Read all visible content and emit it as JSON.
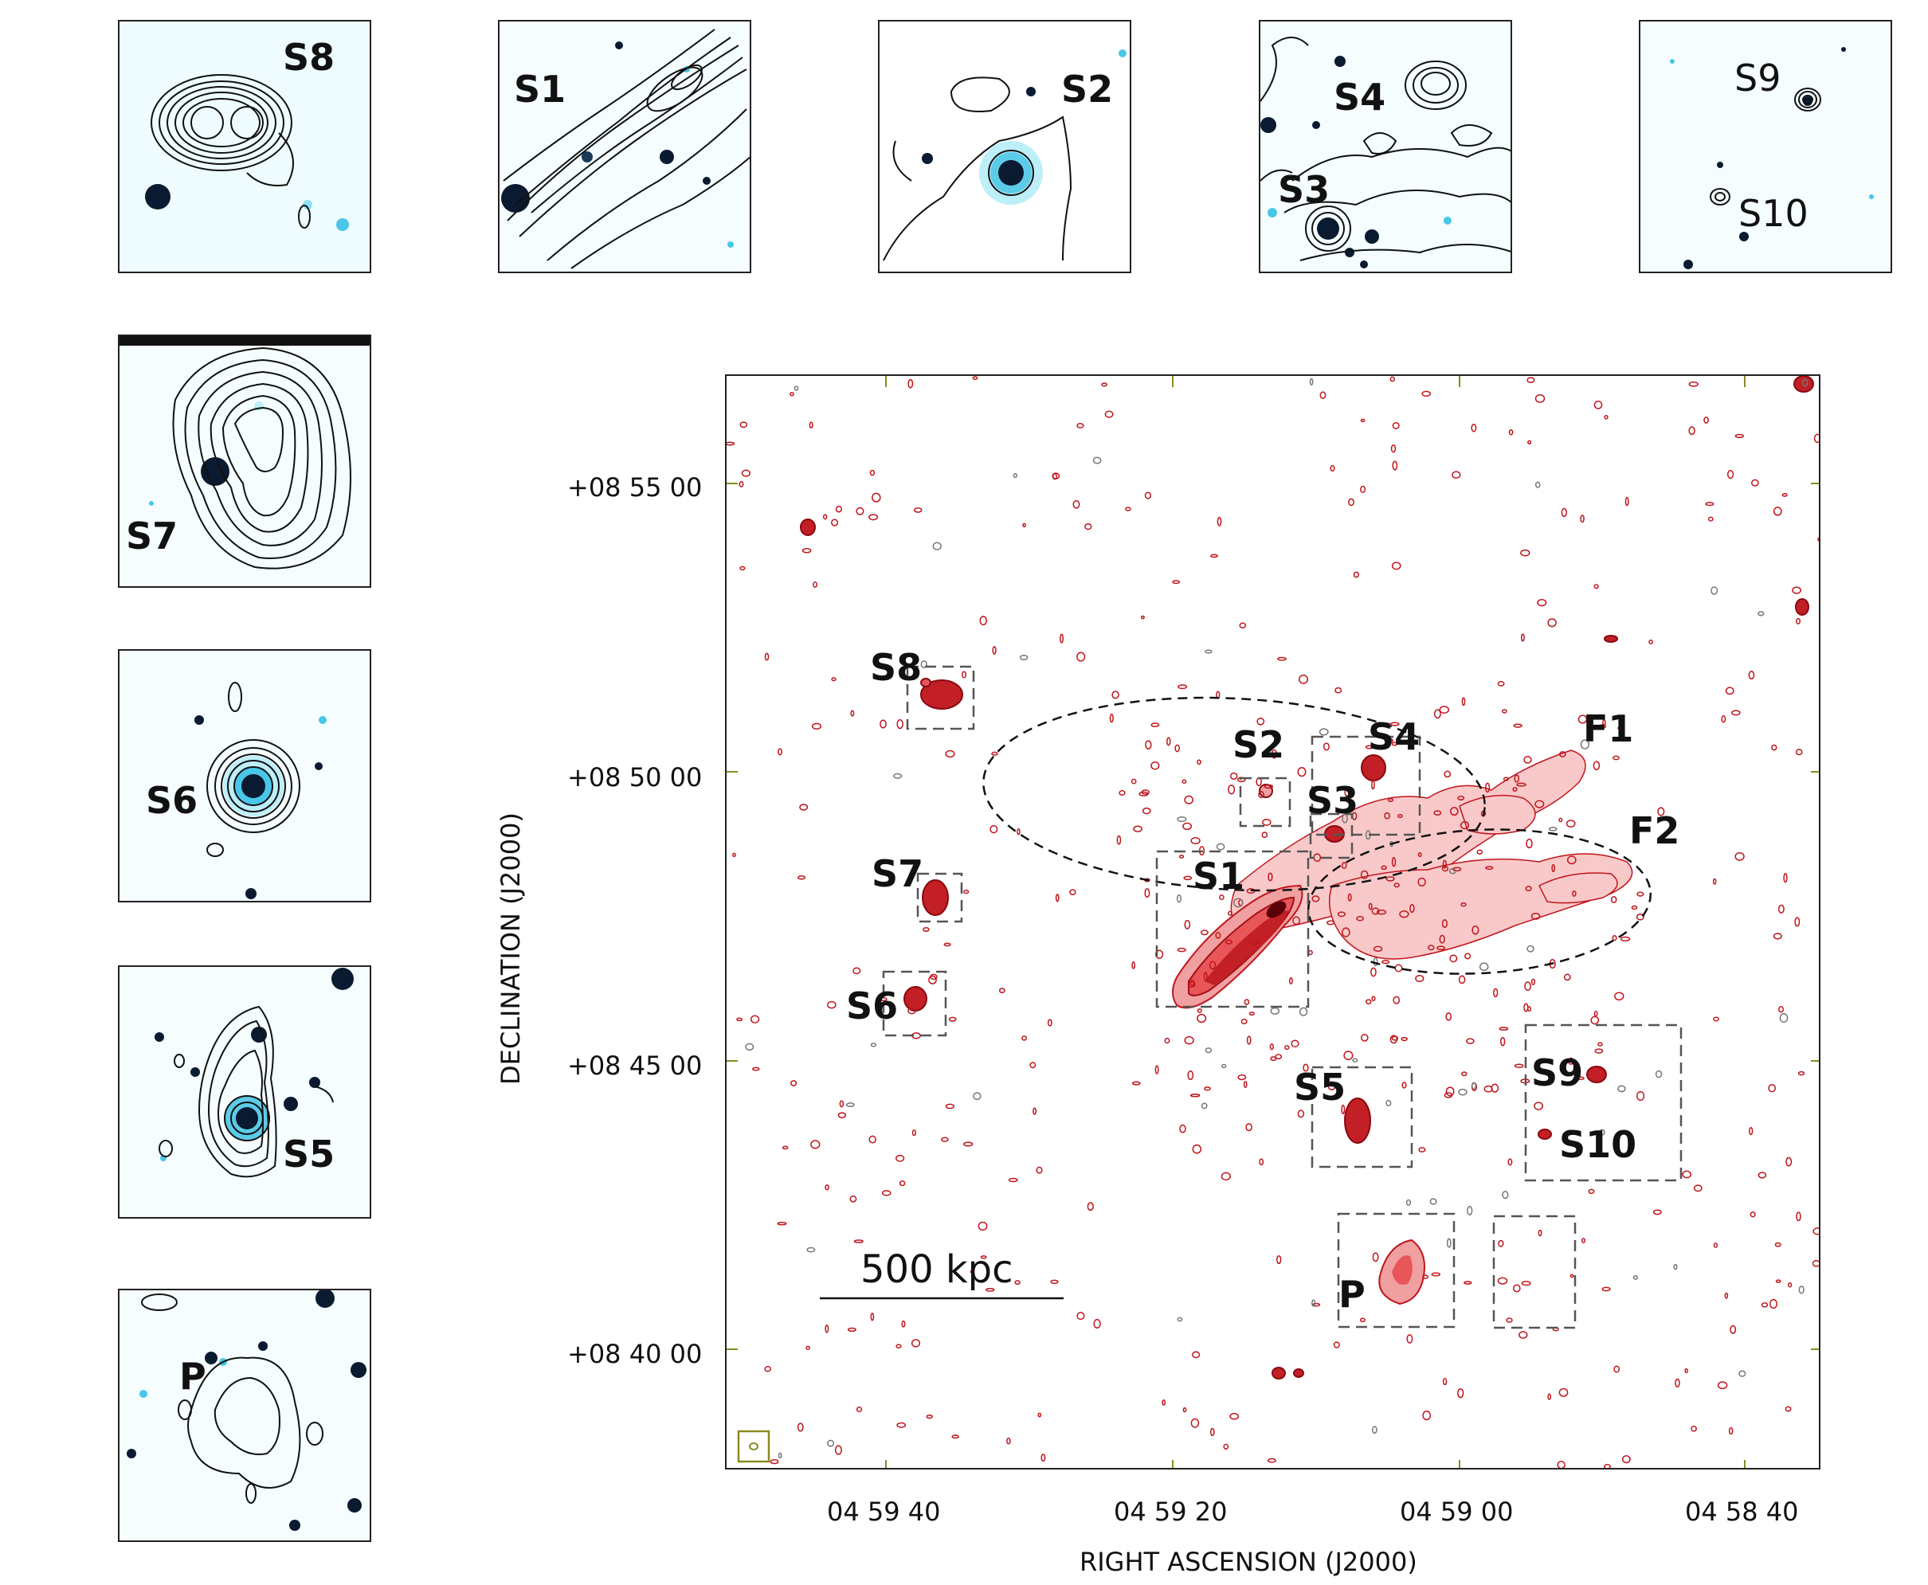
{
  "figure": {
    "insets": {
      "S8": "S8",
      "S1": "S1",
      "S2": "S2",
      "S4": "S4",
      "S3": "S3",
      "S9": "S9",
      "S10": "S10",
      "S7": "S7",
      "S6": "S6",
      "S5": "S5",
      "P": "P"
    },
    "main": {
      "labels": {
        "S1": "S1",
        "S2": "S2",
        "S3": "S3",
        "S4": "S4",
        "S5": "S5",
        "S6": "S6",
        "S7": "S7",
        "S8": "S8",
        "S9": "S9",
        "S10": "S10",
        "P": "P",
        "F1": "F1",
        "F2": "F2"
      },
      "scale_bar": "500 kpc",
      "x_axis": {
        "title": "RIGHT ASCENSION (J2000)",
        "ticks": [
          "04 59 40",
          "04 59 20",
          "04 59 00",
          "04 58 40"
        ]
      },
      "y_axis": {
        "title": "DECLINATION (J2000)",
        "ticks": [
          "+08 55 00",
          "+08 50 00",
          "+08 45 00",
          "+08 40 00"
        ]
      }
    },
    "colors": {
      "contour_red": "#c0151c",
      "fill_red": "#e8565a",
      "fill_pink": "#f7b6b6",
      "optical_blue": "#6fd7ee",
      "dark_source": "#0a1a30",
      "dash_box": "#555555"
    }
  }
}
